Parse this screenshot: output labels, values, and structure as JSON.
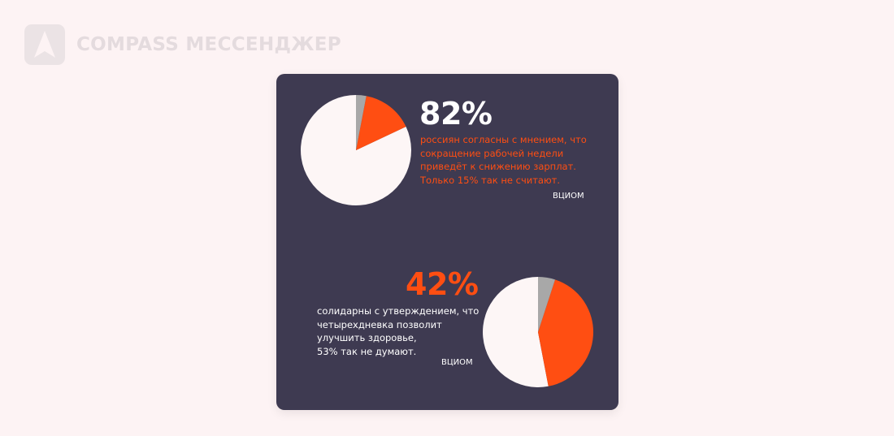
{
  "brand": {
    "name": "COMPASS МЕССЕНДЖЕР",
    "logo_icon": "compass-a-icon"
  },
  "colors": {
    "page_background": "#fdf3f4",
    "card_background": "#3e3a51",
    "accent": "#ff4e12",
    "agree": "#fdf6f6",
    "undecided": "#a8a8a8",
    "text_light": "#ffffff"
  },
  "stats": [
    {
      "value": "82%",
      "caption_lines": [
        "россиян согласны с мнением, что",
        "сокращение рабочей недели",
        "приведёт к снижению зарплат.",
        "Только 15% так не считают."
      ],
      "source": "ВЦИОМ"
    },
    {
      "value": "42%",
      "caption_lines": [
        "солидарны с утверждением, что",
        "четырехдневка позволит",
        "улучшить здоровье,",
        "53% так не думают."
      ],
      "source": "ВЦИОМ"
    }
  ],
  "chart_data": [
    {
      "type": "pie",
      "slices": [
        {
          "value": 82,
          "color": "#fdf6f6"
        },
        {
          "value": 15,
          "color": "#ff4e12"
        },
        {
          "value": 3,
          "color": "#a8a8a8"
        }
      ]
    },
    {
      "type": "pie",
      "slices": [
        {
          "value": 53,
          "color": "#fdf6f6"
        },
        {
          "value": 42,
          "color": "#ff4e12"
        },
        {
          "value": 5,
          "color": "#a8a8a8"
        }
      ]
    }
  ]
}
